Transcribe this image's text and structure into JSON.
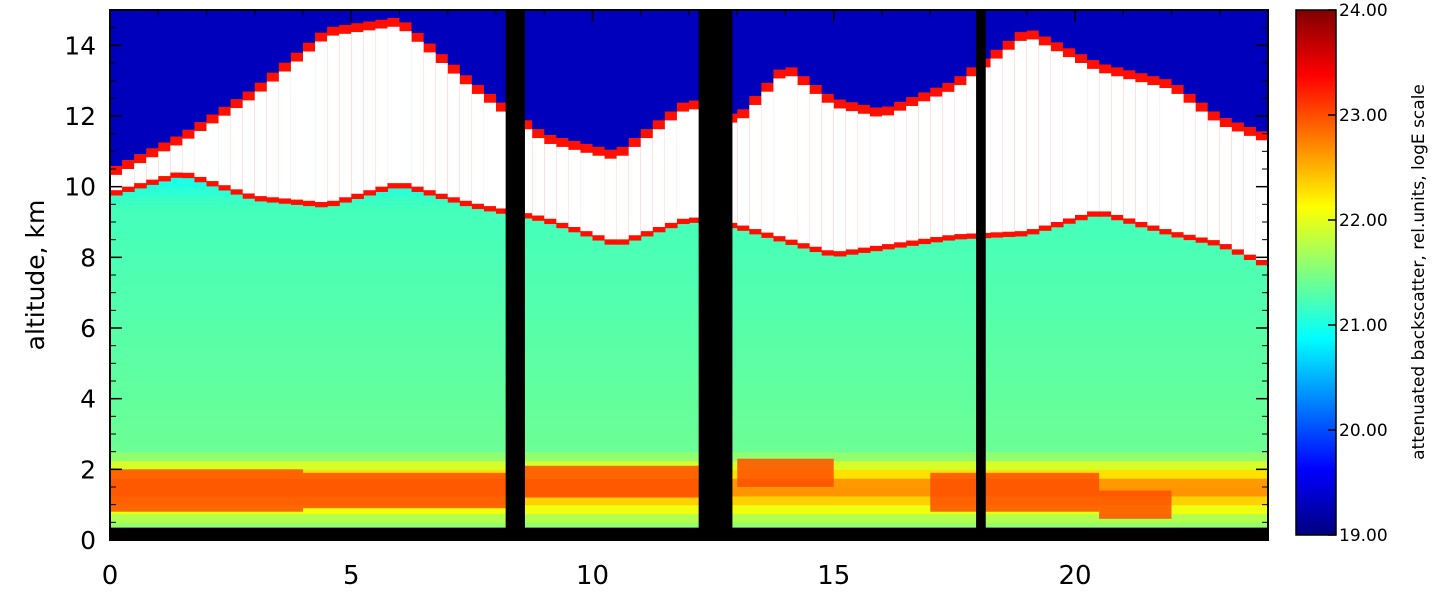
{
  "chart_data": {
    "type": "heatmap",
    "title": "",
    "xlabel": "",
    "ylabel": "altitude,  km",
    "xlim": [
      0,
      24
    ],
    "ylim": [
      0,
      15
    ],
    "x_ticks": [
      0,
      5,
      10,
      15,
      20
    ],
    "x_tick_labels": [
      "0",
      "5",
      "10",
      "15",
      "20"
    ],
    "x_minor_step": 1,
    "y_ticks": [
      0,
      2,
      4,
      6,
      8,
      10,
      12,
      14
    ],
    "y_tick_labels": [
      "0",
      "2",
      "4",
      "6",
      "8",
      "10",
      "12",
      "14"
    ],
    "y_minor_step": 0.5,
    "colorbar": {
      "label": "attenuated backscatter,  rel.units,  logE scale",
      "range": [
        19.0,
        24.0
      ],
      "ticks": [
        19.0,
        20.0,
        21.0,
        22.0,
        23.0,
        24.0
      ],
      "tick_labels": [
        "19.00",
        "20.00",
        "21.00",
        "22.00",
        "23.00",
        "24.00"
      ],
      "colormap": [
        "#00007f",
        "#0000ff",
        "#0080ff",
        "#00ffff",
        "#80ff80",
        "#ffff00",
        "#ff8000",
        "#ff0000",
        "#800000"
      ]
    },
    "background_value_by_altitude": [
      {
        "z": 0.5,
        "value": 21.6
      },
      {
        "z": 1.5,
        "value": 22.8
      },
      {
        "z": 2.5,
        "value": 21.4
      },
      {
        "z": 6.0,
        "value": 21.3
      },
      {
        "z": 9.5,
        "value": 21.2
      },
      {
        "z": 12.0,
        "value": 20.4
      },
      {
        "z": 14.5,
        "value": 19.3
      }
    ],
    "cloud_base_km": [
      {
        "x": 0.0,
        "base": 9.7
      },
      {
        "x": 1.5,
        "base": 10.3
      },
      {
        "x": 3.0,
        "base": 9.6
      },
      {
        "x": 4.5,
        "base": 9.4
      },
      {
        "x": 6.0,
        "base": 10.0
      },
      {
        "x": 7.5,
        "base": 9.4
      },
      {
        "x": 9.0,
        "base": 9.0
      },
      {
        "x": 10.5,
        "base": 8.3
      },
      {
        "x": 12.0,
        "base": 9.0
      },
      {
        "x": 13.0,
        "base": 8.8
      },
      {
        "x": 14.0,
        "base": 8.4
      },
      {
        "x": 15.0,
        "base": 8.0
      },
      {
        "x": 16.0,
        "base": 8.2
      },
      {
        "x": 17.5,
        "base": 8.5
      },
      {
        "x": 19.0,
        "base": 8.6
      },
      {
        "x": 20.5,
        "base": 9.2
      },
      {
        "x": 22.0,
        "base": 8.6
      },
      {
        "x": 23.0,
        "base": 8.3
      },
      {
        "x": 24.0,
        "base": 7.7
      }
    ],
    "cloud_top_km": [
      {
        "x": 0.0,
        "top": 10.5
      },
      {
        "x": 1.5,
        "top": 11.5
      },
      {
        "x": 3.0,
        "top": 12.8
      },
      {
        "x": 4.5,
        "top": 14.5
      },
      {
        "x": 6.0,
        "top": 14.8
      },
      {
        "x": 7.5,
        "top": 13.0
      },
      {
        "x": 9.0,
        "top": 11.5
      },
      {
        "x": 10.5,
        "top": 11.0
      },
      {
        "x": 12.0,
        "top": 12.5
      },
      {
        "x": 13.0,
        "top": 12.0
      },
      {
        "x": 14.0,
        "top": 13.5
      },
      {
        "x": 15.0,
        "top": 12.5
      },
      {
        "x": 16.0,
        "top": 12.2
      },
      {
        "x": 17.5,
        "top": 13.0
      },
      {
        "x": 19.0,
        "top": 14.5
      },
      {
        "x": 20.5,
        "top": 13.5
      },
      {
        "x": 22.0,
        "top": 13.0
      },
      {
        "x": 23.0,
        "top": 12.0
      },
      {
        "x": 24.0,
        "top": 11.5
      }
    ],
    "boundary_layer_bands": [
      {
        "x_start": 0.0,
        "x_end": 4.0,
        "z_bottom": 0.8,
        "z_top": 2.0
      },
      {
        "x_start": 4.0,
        "x_end": 8.2,
        "z_bottom": 0.9,
        "z_top": 1.9
      },
      {
        "x_start": 8.6,
        "x_end": 12.2,
        "z_bottom": 1.2,
        "z_top": 2.1
      },
      {
        "x_start": 13.0,
        "x_end": 15.0,
        "z_bottom": 1.5,
        "z_top": 2.3
      },
      {
        "x_start": 17.0,
        "x_end": 20.5,
        "z_bottom": 0.8,
        "z_top": 1.9
      },
      {
        "x_start": 20.5,
        "x_end": 22.0,
        "z_bottom": 0.6,
        "z_top": 1.4
      }
    ],
    "no_data_columns": [
      {
        "x_start": 8.2,
        "x_end": 8.6
      },
      {
        "x_start": 12.2,
        "x_end": 12.9
      },
      {
        "x_start": 17.95,
        "x_end": 18.15
      }
    ],
    "surface_no_data_top_km": 0.35
  }
}
